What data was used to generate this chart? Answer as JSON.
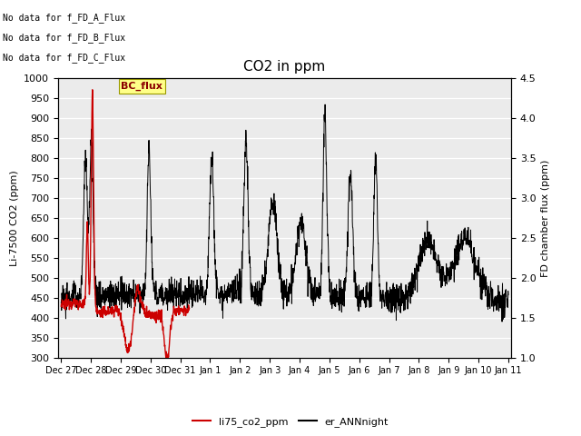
{
  "title": "CO2 in ppm",
  "ylabel_left": "Li-7500 CO2 (ppm)",
  "ylabel_right": "FD chamber flux (ppm)",
  "ylim_left": [
    300,
    1000
  ],
  "ylim_right": [
    1.0,
    4.5
  ],
  "yticks_left": [
    300,
    350,
    400,
    450,
    500,
    550,
    600,
    650,
    700,
    750,
    800,
    850,
    900,
    950,
    1000
  ],
  "yticks_right": [
    1.0,
    1.5,
    2.0,
    2.5,
    3.0,
    3.5,
    4.0,
    4.5
  ],
  "xtick_labels": [
    "Dec 27",
    "Dec 28",
    "Dec 29",
    "Dec 30",
    "Dec 31",
    "Jan 1",
    "Jan 2",
    "Jan 3",
    "Jan 4",
    "Jan 5",
    "Jan 6",
    "Jan 7",
    "Jan 8",
    "Jan 9",
    "Jan 10",
    "Jan 11"
  ],
  "annotations": [
    "No data for f_FD_A_Flux",
    "No data for f_FD_B_Flux",
    "No data for f_FD_C_Flux"
  ],
  "legend_box_label": "BC_flux",
  "legend_line1_label": "li75_co2_ppm",
  "legend_line2_label": "er_ANNnight",
  "line1_color": "#cc0000",
  "line2_color": "#000000",
  "plot_bg_color": "#ebebeb",
  "title_fontsize": 11,
  "axis_fontsize": 8,
  "tick_fontsize": 8,
  "figsize": [
    6.4,
    4.8
  ],
  "dpi": 100
}
